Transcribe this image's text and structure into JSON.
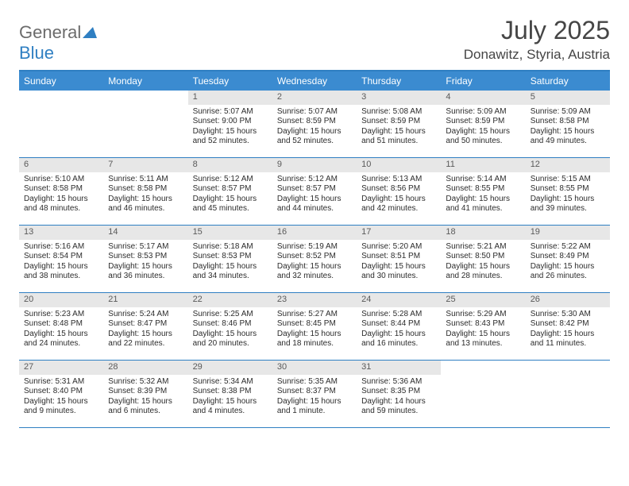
{
  "logo": {
    "part1": "General",
    "part2": "Blue"
  },
  "title": "July 2025",
  "location": "Donawitz, Styria, Austria",
  "colors": {
    "header_bar": "#3b8bd0",
    "border": "#2f7fc2",
    "daynum_bg": "#e7e7e7",
    "text": "#2c2c2c",
    "title_text": "#454545"
  },
  "days_of_week": [
    "Sunday",
    "Monday",
    "Tuesday",
    "Wednesday",
    "Thursday",
    "Friday",
    "Saturday"
  ],
  "weeks": [
    [
      null,
      null,
      {
        "n": "1",
        "sr": "Sunrise: 5:07 AM",
        "ss": "Sunset: 9:00 PM",
        "dl": "Daylight: 15 hours and 52 minutes."
      },
      {
        "n": "2",
        "sr": "Sunrise: 5:07 AM",
        "ss": "Sunset: 8:59 PM",
        "dl": "Daylight: 15 hours and 52 minutes."
      },
      {
        "n": "3",
        "sr": "Sunrise: 5:08 AM",
        "ss": "Sunset: 8:59 PM",
        "dl": "Daylight: 15 hours and 51 minutes."
      },
      {
        "n": "4",
        "sr": "Sunrise: 5:09 AM",
        "ss": "Sunset: 8:59 PM",
        "dl": "Daylight: 15 hours and 50 minutes."
      },
      {
        "n": "5",
        "sr": "Sunrise: 5:09 AM",
        "ss": "Sunset: 8:58 PM",
        "dl": "Daylight: 15 hours and 49 minutes."
      }
    ],
    [
      {
        "n": "6",
        "sr": "Sunrise: 5:10 AM",
        "ss": "Sunset: 8:58 PM",
        "dl": "Daylight: 15 hours and 48 minutes."
      },
      {
        "n": "7",
        "sr": "Sunrise: 5:11 AM",
        "ss": "Sunset: 8:58 PM",
        "dl": "Daylight: 15 hours and 46 minutes."
      },
      {
        "n": "8",
        "sr": "Sunrise: 5:12 AM",
        "ss": "Sunset: 8:57 PM",
        "dl": "Daylight: 15 hours and 45 minutes."
      },
      {
        "n": "9",
        "sr": "Sunrise: 5:12 AM",
        "ss": "Sunset: 8:57 PM",
        "dl": "Daylight: 15 hours and 44 minutes."
      },
      {
        "n": "10",
        "sr": "Sunrise: 5:13 AM",
        "ss": "Sunset: 8:56 PM",
        "dl": "Daylight: 15 hours and 42 minutes."
      },
      {
        "n": "11",
        "sr": "Sunrise: 5:14 AM",
        "ss": "Sunset: 8:55 PM",
        "dl": "Daylight: 15 hours and 41 minutes."
      },
      {
        "n": "12",
        "sr": "Sunrise: 5:15 AM",
        "ss": "Sunset: 8:55 PM",
        "dl": "Daylight: 15 hours and 39 minutes."
      }
    ],
    [
      {
        "n": "13",
        "sr": "Sunrise: 5:16 AM",
        "ss": "Sunset: 8:54 PM",
        "dl": "Daylight: 15 hours and 38 minutes."
      },
      {
        "n": "14",
        "sr": "Sunrise: 5:17 AM",
        "ss": "Sunset: 8:53 PM",
        "dl": "Daylight: 15 hours and 36 minutes."
      },
      {
        "n": "15",
        "sr": "Sunrise: 5:18 AM",
        "ss": "Sunset: 8:53 PM",
        "dl": "Daylight: 15 hours and 34 minutes."
      },
      {
        "n": "16",
        "sr": "Sunrise: 5:19 AM",
        "ss": "Sunset: 8:52 PM",
        "dl": "Daylight: 15 hours and 32 minutes."
      },
      {
        "n": "17",
        "sr": "Sunrise: 5:20 AM",
        "ss": "Sunset: 8:51 PM",
        "dl": "Daylight: 15 hours and 30 minutes."
      },
      {
        "n": "18",
        "sr": "Sunrise: 5:21 AM",
        "ss": "Sunset: 8:50 PM",
        "dl": "Daylight: 15 hours and 28 minutes."
      },
      {
        "n": "19",
        "sr": "Sunrise: 5:22 AM",
        "ss": "Sunset: 8:49 PM",
        "dl": "Daylight: 15 hours and 26 minutes."
      }
    ],
    [
      {
        "n": "20",
        "sr": "Sunrise: 5:23 AM",
        "ss": "Sunset: 8:48 PM",
        "dl": "Daylight: 15 hours and 24 minutes."
      },
      {
        "n": "21",
        "sr": "Sunrise: 5:24 AM",
        "ss": "Sunset: 8:47 PM",
        "dl": "Daylight: 15 hours and 22 minutes."
      },
      {
        "n": "22",
        "sr": "Sunrise: 5:25 AM",
        "ss": "Sunset: 8:46 PM",
        "dl": "Daylight: 15 hours and 20 minutes."
      },
      {
        "n": "23",
        "sr": "Sunrise: 5:27 AM",
        "ss": "Sunset: 8:45 PM",
        "dl": "Daylight: 15 hours and 18 minutes."
      },
      {
        "n": "24",
        "sr": "Sunrise: 5:28 AM",
        "ss": "Sunset: 8:44 PM",
        "dl": "Daylight: 15 hours and 16 minutes."
      },
      {
        "n": "25",
        "sr": "Sunrise: 5:29 AM",
        "ss": "Sunset: 8:43 PM",
        "dl": "Daylight: 15 hours and 13 minutes."
      },
      {
        "n": "26",
        "sr": "Sunrise: 5:30 AM",
        "ss": "Sunset: 8:42 PM",
        "dl": "Daylight: 15 hours and 11 minutes."
      }
    ],
    [
      {
        "n": "27",
        "sr": "Sunrise: 5:31 AM",
        "ss": "Sunset: 8:40 PM",
        "dl": "Daylight: 15 hours and 9 minutes."
      },
      {
        "n": "28",
        "sr": "Sunrise: 5:32 AM",
        "ss": "Sunset: 8:39 PM",
        "dl": "Daylight: 15 hours and 6 minutes."
      },
      {
        "n": "29",
        "sr": "Sunrise: 5:34 AM",
        "ss": "Sunset: 8:38 PM",
        "dl": "Daylight: 15 hours and 4 minutes."
      },
      {
        "n": "30",
        "sr": "Sunrise: 5:35 AM",
        "ss": "Sunset: 8:37 PM",
        "dl": "Daylight: 15 hours and 1 minute."
      },
      {
        "n": "31",
        "sr": "Sunrise: 5:36 AM",
        "ss": "Sunset: 8:35 PM",
        "dl": "Daylight: 14 hours and 59 minutes."
      },
      null,
      null
    ]
  ]
}
